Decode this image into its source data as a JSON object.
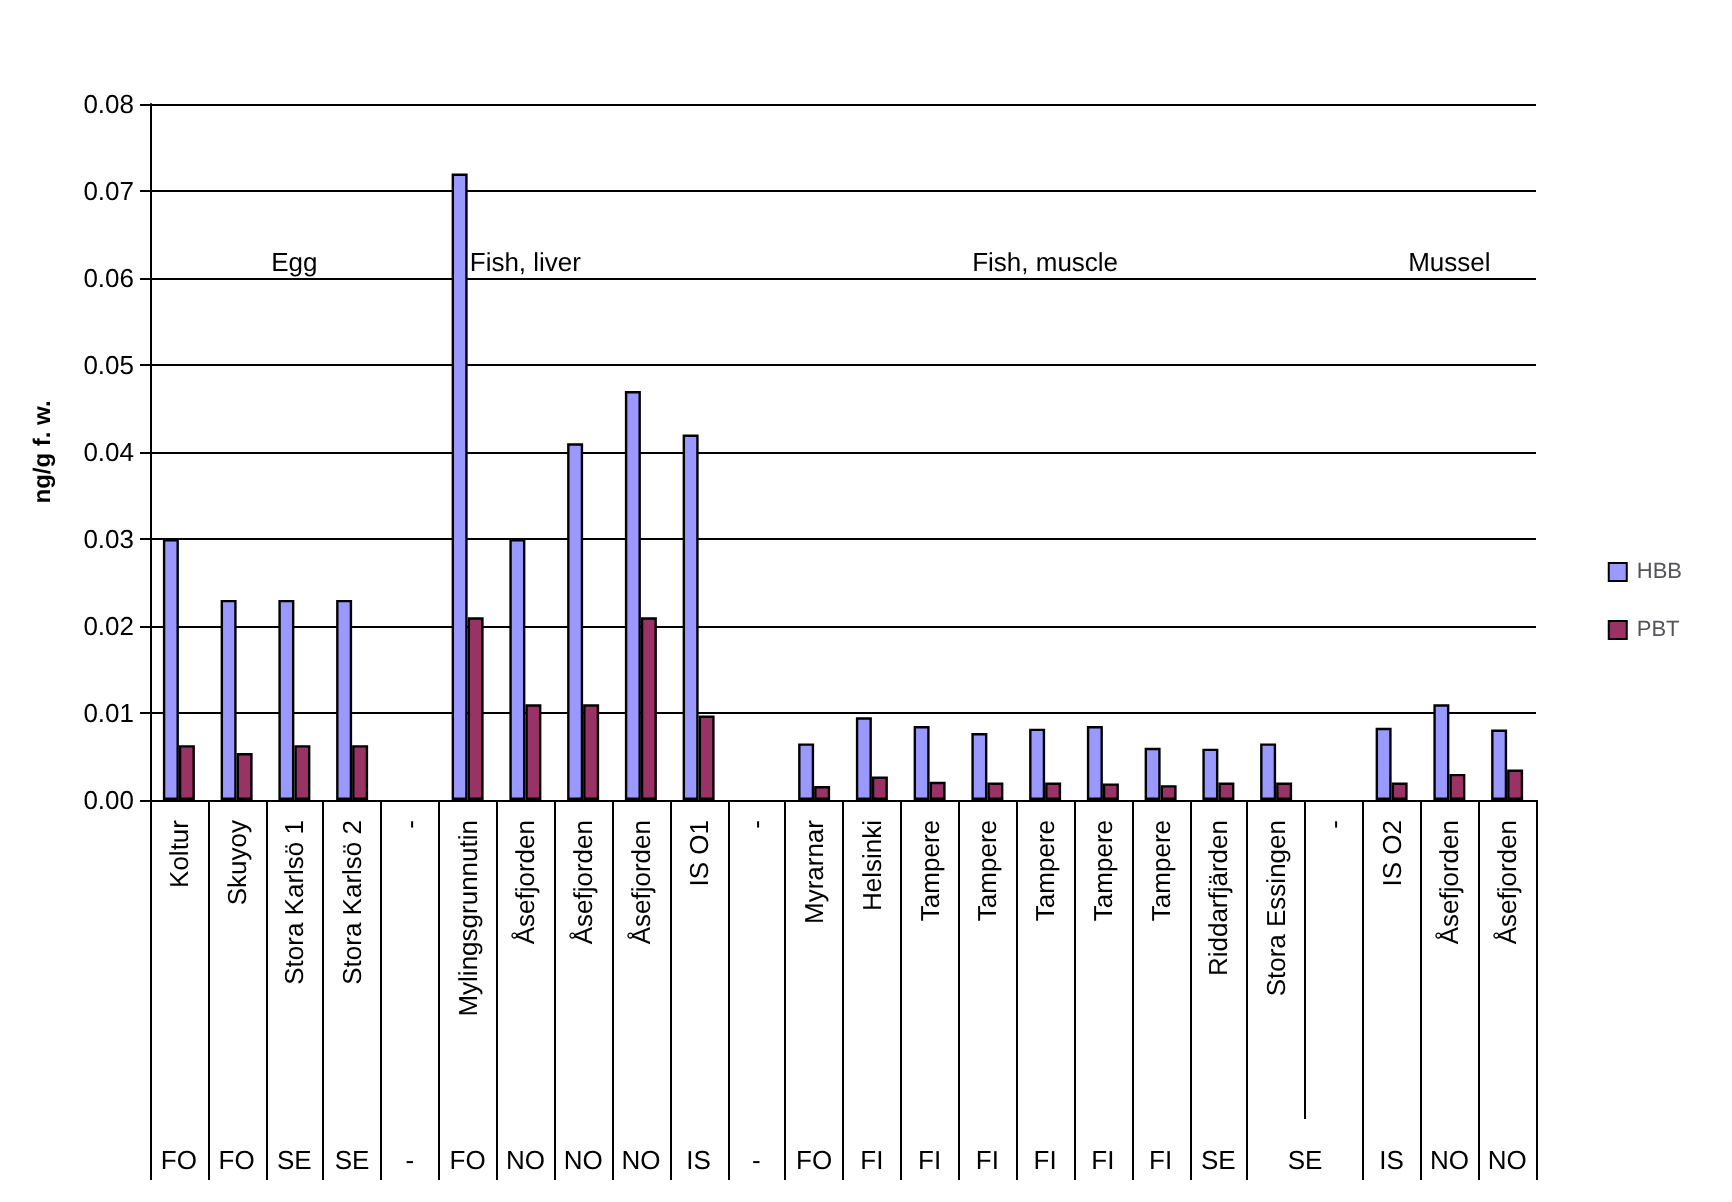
{
  "chart_data": {
    "type": "bar",
    "ylabel": "ng/g f. w.",
    "categories": [
      "Koltur",
      "Skuyoy",
      "Stora Karlsö 1",
      "Stora Karlsö 2",
      "-",
      "Mylingsgrunnutin",
      "Åsefjorden",
      "Åsefjorden",
      "Åsefjorden",
      "IS O1",
      "-",
      "Myrarnar",
      "Helsinki",
      "Tampere",
      "Tampere",
      "Tampere",
      "Tampere",
      "Tampere",
      "Riddarfjärden",
      "Stora Essingen",
      "-",
      "IS O2",
      "Åsefjorden",
      "Åsefjorden"
    ],
    "series": [
      {
        "name": "HBB",
        "color": "#9999ff",
        "values": [
          0.03,
          0.023,
          0.023,
          0.023,
          null,
          0.072,
          0.03,
          0.041,
          0.047,
          0.042,
          null,
          0.0065,
          0.0095,
          0.0085,
          0.0077,
          0.0082,
          0.0085,
          0.006,
          0.0059,
          0.0065,
          null,
          0.0083,
          0.011,
          0.0081
        ]
      },
      {
        "name": "PBT",
        "color": "#993366",
        "values": [
          0.0063,
          0.0054,
          0.0063,
          0.0063,
          null,
          0.021,
          0.011,
          0.011,
          0.021,
          0.0097,
          null,
          0.0016,
          0.0027,
          0.0021,
          0.002,
          0.002,
          0.0019,
          0.0017,
          0.002,
          0.002,
          null,
          0.002,
          0.003,
          0.0035
        ]
      }
    ],
    "ylim": [
      0,
      0.08
    ],
    "yticks": [
      {
        "value": 0,
        "label": "0.00"
      },
      0.01,
      0.02,
      0.03,
      0.04,
      0.05,
      0.06,
      0.07,
      0.08
    ],
    "grid": "y",
    "legend": "right",
    "annotations": [
      "Egg",
      "Fish, liver",
      "Fish, muscle",
      "Mussel",
      "FO",
      "FO",
      "SE",
      "SE",
      "-",
      "FO",
      "NO",
      "NO",
      "NO",
      "IS",
      "-",
      "FO",
      "FI",
      "FI",
      "FI",
      "FI",
      "FI",
      "FI",
      "SE",
      "SE",
      "IS",
      "NO",
      "NO"
    ]
  }
}
